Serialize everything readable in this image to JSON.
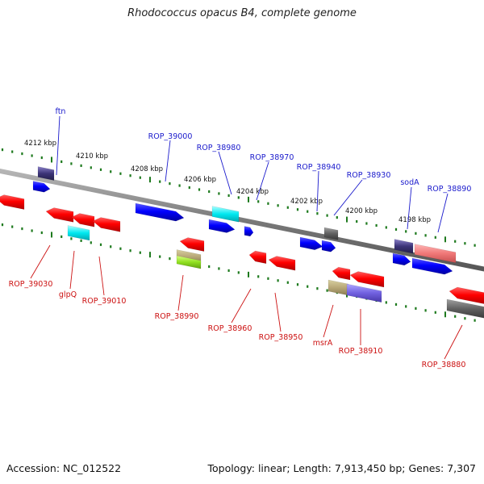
{
  "title": "Rhodococcus opacus B4, complete genome",
  "footer": {
    "accession_label": "Accession:",
    "accession": "NC_012522",
    "topology_label": "Topology:",
    "topology": "linear",
    "length_label": "Length:",
    "length": "7,913,450 bp",
    "genes_label": "Genes:",
    "genes": "7,307"
  },
  "colors": {
    "forward_label": "#1a1acc",
    "reverse_label": "#cc1111",
    "tick": "#1e7a1e",
    "backbone": "#888888"
  },
  "scale_ticks": [
    "4212 kbp",
    "4210 kbp",
    "4208 kbp",
    "4206 kbp",
    "4204 kbp",
    "4202 kbp",
    "4200 kbp",
    "4198 kbp"
  ],
  "forward_labels": [
    "ftn",
    "ROP_39000",
    "ROP_38980",
    "ROP_38970",
    "ROP_38940",
    "ROP_38930",
    "sodA",
    "ROP_38890"
  ],
  "reverse_labels": [
    "ROP_39030",
    "glpQ",
    "ROP_39010",
    "ROP_38990",
    "ROP_38960",
    "ROP_38950",
    "msrA",
    "ROP_38910",
    "ROP_38880"
  ]
}
